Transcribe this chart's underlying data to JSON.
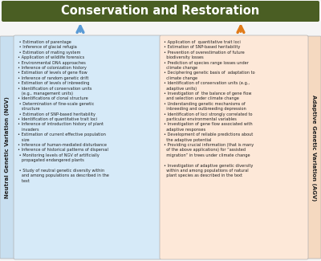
{
  "title": "Conservation and Restoration",
  "title_bg": "#4a5e23",
  "title_color": "#ffffff",
  "left_label": "Neutral Genetic Variation (NGV)",
  "right_label": "Adaptive Genetic Variation (AGV)",
  "left_box_color": "#d6eaf8",
  "right_box_color": "#fde8d8",
  "left_side_label_bg": "#c8dff0",
  "right_side_label_bg": "#f5d9c0",
  "left_arrow_color": "#5b9bd5",
  "right_arrow_color": "#e07b1a",
  "left_items": [
    " • Estimation of parentage",
    " • Inference of glacial refugia",
    " • Estimation of mating system",
    "• Application of wildlife forensics",
    "• Environmental DNA approaches",
    "• Inference of colonization history",
    "• Estimation of levels of gene flow",
    "• Inference of random genetic drift",
    "• Estimation of levels of inbreeding",
    "• Identification of conservation units",
    "   (e.g., management units)",
    "• Identifications of clonal structure",
    " • Determination of fine-scale genetic",
    "   structure",
    " • Estimation of SNP-based heritability",
    "• Identification of quantitative trait loci",
    "• Inference of introduction history of plant",
    "   invaders",
    "• Estimation of current effective population",
    "   size",
    "• Inference of human-mediated disturbance",
    "• Inference of historical patterns of dispersal",
    " • Monitoring levels of NGV of artificially",
    "   propagated endangered plants",
    "",
    " • Study of neutral genetic diversity within",
    "   and among populations as described in the",
    "   text"
  ],
  "right_items": [
    "• Application of  quantitative trait loci",
    "• Estimation of SNP-based heritability",
    "• Prevention of overestimation of future",
    "  biodiversity losses",
    "• Prediction of species range losses under",
    "  climate change",
    "• Deciphering genetic basis of  adaptation to",
    "  climate change",
    "• Identification of conservation units (e.g.,",
    "  adaptive units)",
    "• Investigation of  the balance of gene flow",
    "  and selection under climate change",
    "• Understanding genetic mechanisms of",
    "  inbreeding and outbreeding depression",
    "• Identification of loci strongly correlated to",
    "  particular environmental variables",
    "• Investigation of gene flow associated with",
    "  adaptive responses",
    "• Development of reliable predictions about",
    "  the adaptive potential",
    "• Providing crucial information (that is many",
    "  of the above applications) for “assisted",
    "  migration” in trees under climate change",
    "",
    "• Investigation of adaptive genetic diversity",
    "  within and among populations of natural",
    "  plant species as described in the text"
  ],
  "text_color": "#222222",
  "box_border_color": "#b0b0b0",
  "bg_color": "#f5f5f5"
}
